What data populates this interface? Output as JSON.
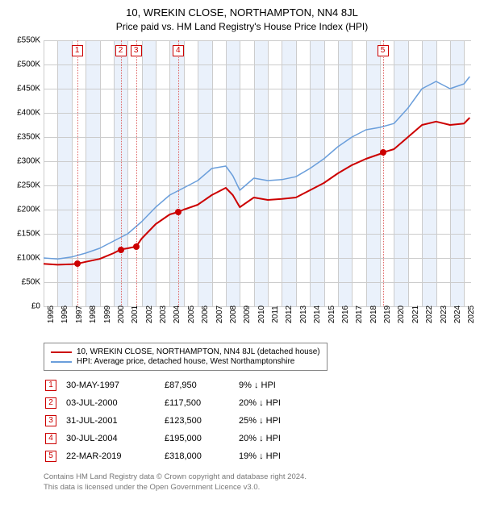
{
  "title": "10, WREKIN CLOSE, NORTHAMPTON, NN4 8JL",
  "subtitle": "Price paid vs. HM Land Registry's House Price Index (HPI)",
  "chart": {
    "type": "line",
    "background_color": "#ffffff",
    "grid_color": "#cccccc",
    "band_color": "#eaf1fb",
    "xlim": [
      1995,
      2025.5
    ],
    "ylim": [
      0,
      550000
    ],
    "ytick_step": 50000,
    "yticks": [
      "£0",
      "£50K",
      "£100K",
      "£150K",
      "£200K",
      "£250K",
      "£300K",
      "£350K",
      "£400K",
      "£450K",
      "£500K",
      "£550K"
    ],
    "xticks": [
      1995,
      1996,
      1997,
      1998,
      1999,
      2000,
      2001,
      2002,
      2003,
      2004,
      2005,
      2006,
      2007,
      2008,
      2009,
      2010,
      2011,
      2012,
      2013,
      2014,
      2015,
      2016,
      2017,
      2018,
      2019,
      2020,
      2021,
      2022,
      2023,
      2024,
      2025
    ],
    "tick_fontsize": 10,
    "series": [
      {
        "name": "property",
        "color": "#cc0000",
        "width": 2,
        "points": [
          [
            1995,
            88000
          ],
          [
            1996,
            86000
          ],
          [
            1997,
            87000
          ],
          [
            1997.4,
            87950
          ],
          [
            1998,
            92000
          ],
          [
            1999,
            98000
          ],
          [
            2000,
            110000
          ],
          [
            2000.5,
            117500
          ],
          [
            2001,
            120000
          ],
          [
            2001.6,
            123500
          ],
          [
            2002,
            140000
          ],
          [
            2003,
            170000
          ],
          [
            2004,
            190000
          ],
          [
            2004.6,
            195000
          ],
          [
            2005,
            200000
          ],
          [
            2006,
            210000
          ],
          [
            2007,
            230000
          ],
          [
            2008,
            245000
          ],
          [
            2008.5,
            230000
          ],
          [
            2009,
            205000
          ],
          [
            2010,
            225000
          ],
          [
            2011,
            220000
          ],
          [
            2012,
            222000
          ],
          [
            2013,
            225000
          ],
          [
            2014,
            240000
          ],
          [
            2015,
            255000
          ],
          [
            2016,
            275000
          ],
          [
            2017,
            292000
          ],
          [
            2018,
            305000
          ],
          [
            2019,
            315000
          ],
          [
            2019.2,
            318000
          ],
          [
            2020,
            325000
          ],
          [
            2021,
            350000
          ],
          [
            2022,
            375000
          ],
          [
            2023,
            382000
          ],
          [
            2024,
            375000
          ],
          [
            2025,
            378000
          ],
          [
            2025.4,
            390000
          ]
        ]
      },
      {
        "name": "hpi",
        "color": "#6a9edb",
        "width": 1.5,
        "points": [
          [
            1995,
            100000
          ],
          [
            1996,
            98000
          ],
          [
            1997,
            102000
          ],
          [
            1998,
            110000
          ],
          [
            1999,
            120000
          ],
          [
            2000,
            135000
          ],
          [
            2001,
            150000
          ],
          [
            2002,
            175000
          ],
          [
            2003,
            205000
          ],
          [
            2004,
            230000
          ],
          [
            2005,
            245000
          ],
          [
            2006,
            260000
          ],
          [
            2007,
            285000
          ],
          [
            2008,
            290000
          ],
          [
            2008.5,
            270000
          ],
          [
            2009,
            240000
          ],
          [
            2010,
            265000
          ],
          [
            2011,
            260000
          ],
          [
            2012,
            262000
          ],
          [
            2013,
            268000
          ],
          [
            2014,
            285000
          ],
          [
            2015,
            305000
          ],
          [
            2016,
            330000
          ],
          [
            2017,
            350000
          ],
          [
            2018,
            365000
          ],
          [
            2019,
            370000
          ],
          [
            2020,
            378000
          ],
          [
            2021,
            410000
          ],
          [
            2022,
            450000
          ],
          [
            2023,
            465000
          ],
          [
            2024,
            450000
          ],
          [
            2025,
            460000
          ],
          [
            2025.4,
            475000
          ]
        ]
      }
    ],
    "sale_markers": [
      {
        "n": "1",
        "x": 1997.4,
        "y": 87950
      },
      {
        "n": "2",
        "x": 2000.5,
        "y": 117500
      },
      {
        "n": "3",
        "x": 2001.6,
        "y": 123500
      },
      {
        "n": "4",
        "x": 2004.6,
        "y": 195000
      },
      {
        "n": "5",
        "x": 2019.2,
        "y": 318000
      }
    ],
    "marker_line_color": "#e06666",
    "marker_box_border": "#cc0000",
    "dot_color": "#cc0000"
  },
  "legend": {
    "items": [
      {
        "color": "#cc0000",
        "label": "10, WREKIN CLOSE, NORTHAMPTON, NN4 8JL (detached house)"
      },
      {
        "color": "#6a9edb",
        "label": "HPI: Average price, detached house, West Northamptonshire"
      }
    ]
  },
  "sales": [
    {
      "n": "1",
      "date": "30-MAY-1997",
      "price": "£87,950",
      "diff": "9% ↓ HPI"
    },
    {
      "n": "2",
      "date": "03-JUL-2000",
      "price": "£117,500",
      "diff": "20% ↓ HPI"
    },
    {
      "n": "3",
      "date": "31-JUL-2001",
      "price": "£123,500",
      "diff": "25% ↓ HPI"
    },
    {
      "n": "4",
      "date": "30-JUL-2004",
      "price": "£195,000",
      "diff": "20% ↓ HPI"
    },
    {
      "n": "5",
      "date": "22-MAR-2019",
      "price": "£318,000",
      "diff": "19% ↓ HPI"
    }
  ],
  "footer_line1": "Contains HM Land Registry data © Crown copyright and database right 2024.",
  "footer_line2": "This data is licensed under the Open Government Licence v3.0."
}
